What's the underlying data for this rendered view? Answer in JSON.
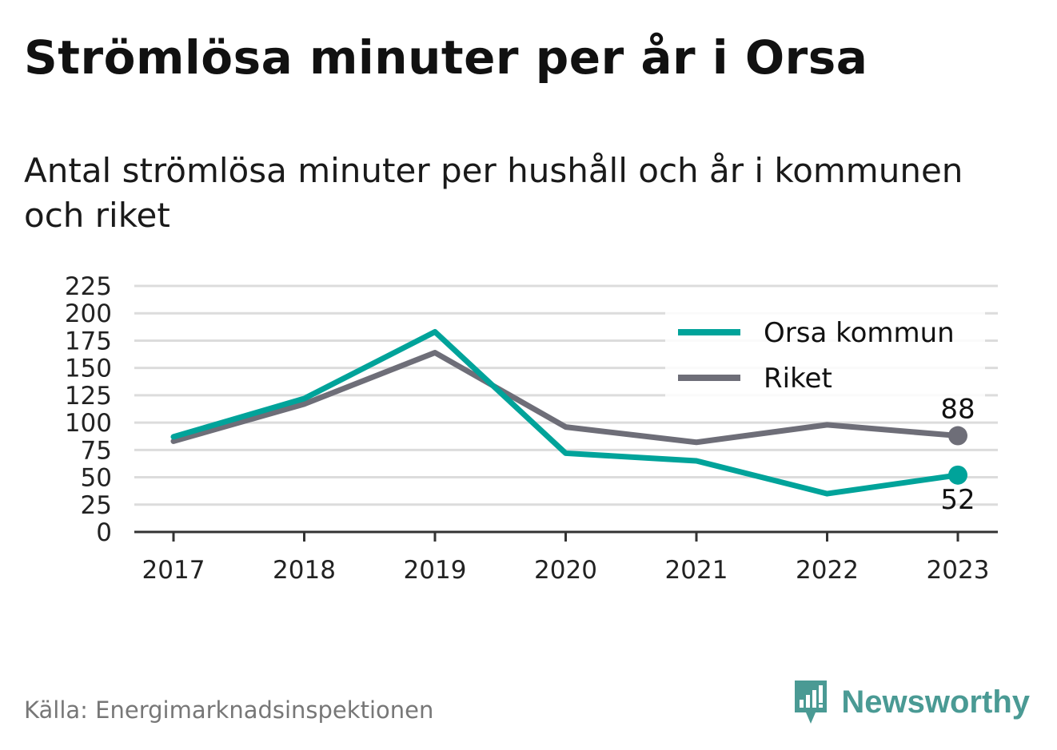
{
  "title": "Strömlösa minuter per år i Orsa",
  "subtitle": "Antal strömlösa minuter per hushåll och år i kommunen och riket",
  "source": "Källa: Energimarknadsinspektionen",
  "brand": "Newsworthy",
  "colors": {
    "orsa": "#00a39a",
    "riket": "#6e6e78",
    "grid": "#dcdcdc",
    "axis": "#333333",
    "brand": "#4a9a94"
  },
  "chart_data": {
    "type": "line",
    "categories": [
      "2017",
      "2018",
      "2019",
      "2020",
      "2021",
      "2022",
      "2023"
    ],
    "ylim": [
      0,
      225
    ],
    "yticks": [
      "0",
      "25",
      "50",
      "75",
      "100",
      "125",
      "150",
      "175",
      "200",
      "225"
    ],
    "grid": true,
    "legend": "top-right",
    "series": [
      {
        "name": "Orsa kommun",
        "color": "#00a39a",
        "values": [
          87,
          122,
          183,
          72,
          65,
          35,
          52
        ],
        "end_label": "52"
      },
      {
        "name": "Riket",
        "color": "#6e6e78",
        "values": [
          83,
          117,
          164,
          96,
          82,
          98,
          88
        ],
        "end_label": "88"
      }
    ]
  }
}
